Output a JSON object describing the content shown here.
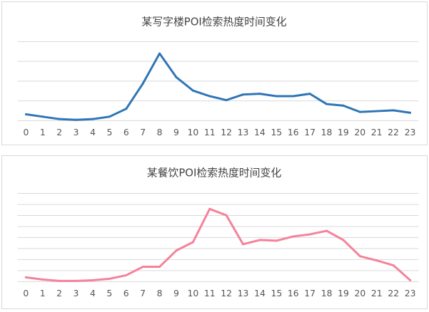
{
  "chart_data": [
    {
      "type": "line",
      "title": "某写字楼POI检索热度时间变化",
      "categories": [
        "0",
        "1",
        "2",
        "3",
        "4",
        "5",
        "6",
        "7",
        "8",
        "9",
        "10",
        "11",
        "12",
        "13",
        "14",
        "15",
        "16",
        "17",
        "18",
        "19",
        "20",
        "21",
        "22",
        "23"
      ],
      "series": [
        {
          "color": "#2e75b6",
          "values": [
            0.8,
            0.5,
            0.2,
            0.1,
            0.2,
            0.5,
            1.5,
            4.7,
            8.5,
            5.5,
            3.8,
            3.1,
            2.6,
            3.3,
            3.4,
            3.1,
            3.1,
            3.4,
            2.1,
            1.9,
            1.1,
            1.2,
            1.3,
            1.0
          ]
        }
      ],
      "ylim": [
        0,
        10
      ],
      "grid": true,
      "xlabel": "",
      "ylabel": ""
    },
    {
      "type": "line",
      "title": "某餐饮POI检索热度时间变化",
      "categories": [
        "0",
        "1",
        "2",
        "3",
        "4",
        "5",
        "6",
        "7",
        "8",
        "9",
        "10",
        "11",
        "12",
        "13",
        "14",
        "15",
        "16",
        "17",
        "18",
        "19",
        "20",
        "21",
        "22",
        "23"
      ],
      "series": [
        {
          "color": "#f4829a",
          "values": [
            0.6,
            0.3,
            0.1,
            0.1,
            0.2,
            0.4,
            0.9,
            2.1,
            2.1,
            4.4,
            5.6,
            10.3,
            9.4,
            5.3,
            5.9,
            5.8,
            6.4,
            6.7,
            7.2,
            5.9,
            3.6,
            3.0,
            2.3,
            0.2
          ]
        }
      ],
      "ylim": [
        0,
        12.5
      ],
      "grid": true,
      "xlabel": "",
      "ylabel": ""
    }
  ]
}
